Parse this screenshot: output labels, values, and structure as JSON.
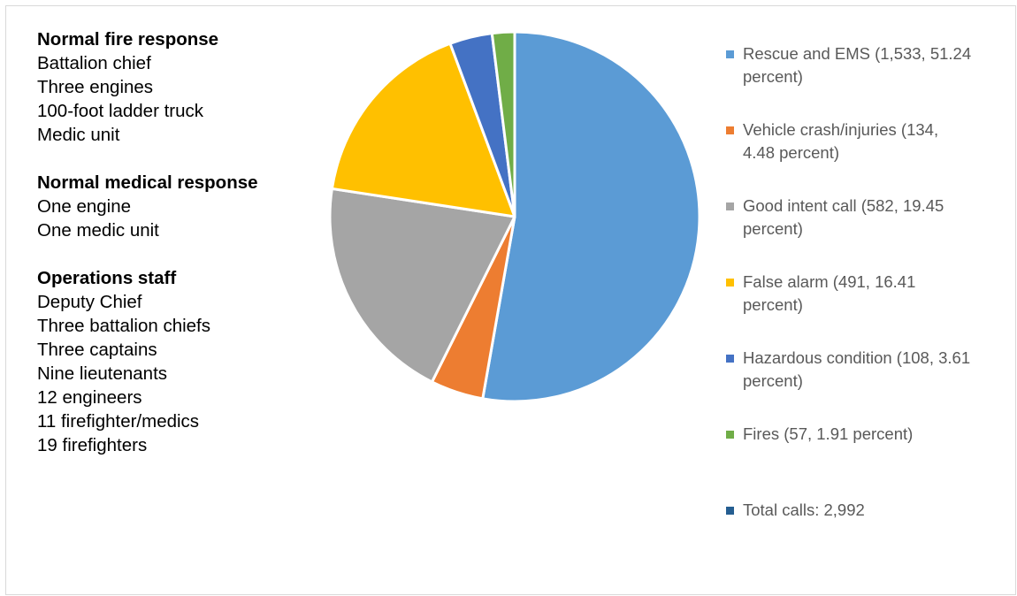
{
  "notes": {
    "sections": [
      {
        "heading": "Normal fire response",
        "lines": [
          "Battalion chief",
          "Three engines",
          "100-foot ladder truck",
          "Medic unit"
        ]
      },
      {
        "heading": "Normal medical response",
        "lines": [
          "One engine",
          "One medic unit"
        ]
      },
      {
        "heading": "Operations staff",
        "lines": [
          "Deputy Chief",
          "Three battalion chiefs",
          "Three captains",
          "Nine lieutenants",
          "12 engineers",
          "11 firefighter/medics",
          "19 firefighters"
        ]
      }
    ]
  },
  "chart_data": {
    "type": "pie",
    "title": "",
    "start_angle_deg": 0,
    "direction": "clockwise",
    "legend_position": "right",
    "slices": [
      {
        "label": "Rescue and EMS",
        "value": 1533,
        "percent": 51.24,
        "color": "#5b9bd5",
        "legend_lines": [
          "Rescue and EMS (1,533, 51.24",
          "percent)"
        ]
      },
      {
        "label": "Vehicle crash/injuries",
        "value": 134,
        "percent": 4.48,
        "color": "#ed7d31",
        "legend_lines": [
          "Vehicle crash/injuries (134,",
          "4.48 percent)"
        ]
      },
      {
        "label": "Good intent call",
        "value": 582,
        "percent": 19.45,
        "color": "#a5a5a5",
        "legend_lines": [
          "Good intent call (582, 19.45",
          "percent)"
        ]
      },
      {
        "label": "False alarm",
        "value": 491,
        "percent": 16.41,
        "color": "#ffc000",
        "legend_lines": [
          "False alarm (491, 16.41",
          "percent)"
        ]
      },
      {
        "label": "Hazardous condition",
        "value": 108,
        "percent": 3.61,
        "color": "#4472c4",
        "legend_lines": [
          "Hazardous condition (108, 3.61",
          "percent)"
        ]
      },
      {
        "label": "Fires",
        "value": 57,
        "percent": 1.91,
        "color": "#70ad47",
        "legend_lines": [
          "Fires (57, 1.91 percent)"
        ]
      }
    ],
    "total": {
      "label": "Total calls: 2,992",
      "value": 2992,
      "color": "#255e91"
    }
  }
}
